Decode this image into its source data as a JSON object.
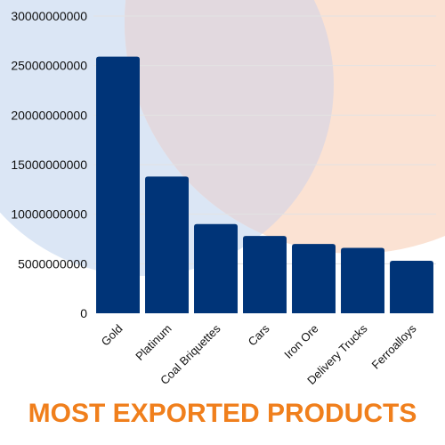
{
  "colors": {
    "bar": "#003478",
    "title": "#f07f1c",
    "blue_circle": "#dbe6f5",
    "peach_circle": "#fbe2d3",
    "overlap": "#e2d9df",
    "gridline": "#e3e3e3"
  },
  "chart_data": {
    "type": "bar",
    "title": "MOST EXPORTED PRODUCTS",
    "xlabel": "",
    "ylabel": "",
    "categories": [
      "Gold",
      "Platinum",
      "Coal Briquettes",
      "Cars",
      "Iron Ore",
      "Delivery Trucks",
      "Ferroalloys"
    ],
    "values": [
      25900000000,
      13800000000,
      9000000000,
      7800000000,
      7000000000,
      6600000000,
      5300000000
    ],
    "ylim": [
      0,
      30000000000
    ],
    "y_ticks": [
      "0",
      "5000000000",
      "10000000000",
      "15000000000",
      "20000000000",
      "25000000000",
      "30000000000"
    ],
    "grid": true,
    "legend": "none"
  }
}
